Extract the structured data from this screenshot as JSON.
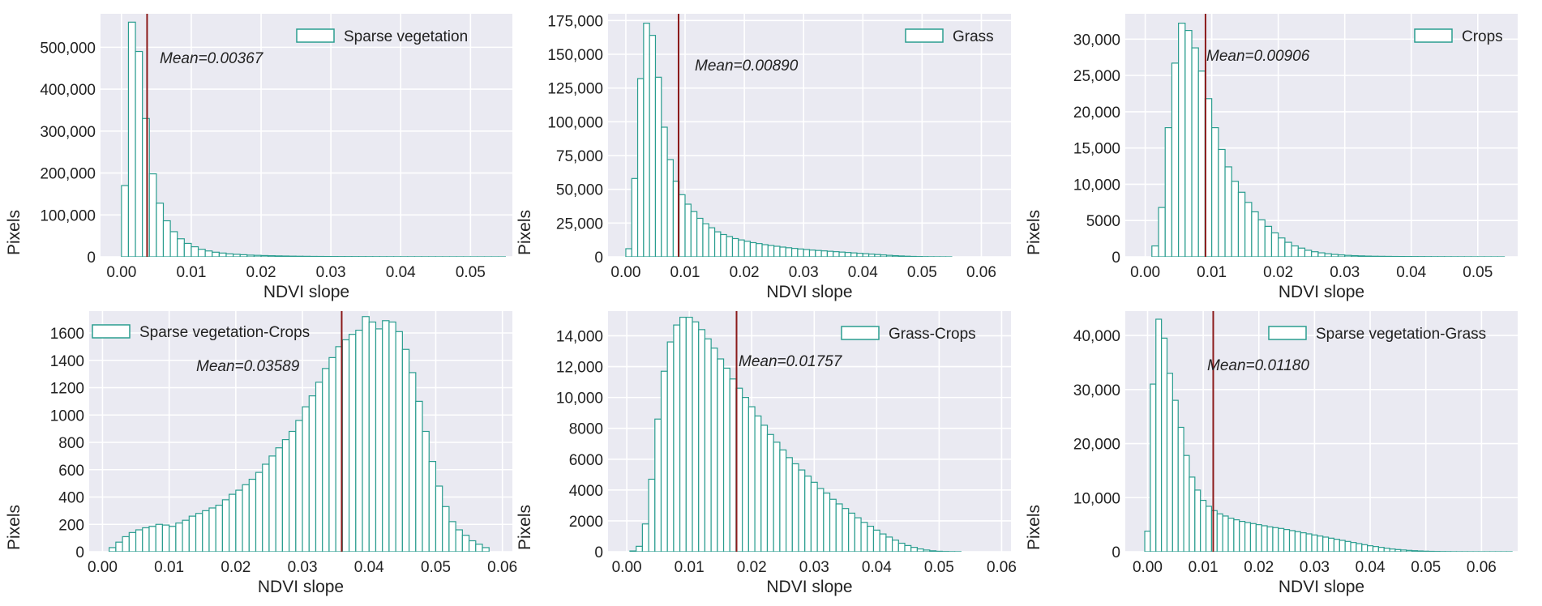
{
  "colors": {
    "background": "#eaeaf2",
    "grid": "#ffffff",
    "bar_edge": "#2a9d8f",
    "bar_fill": "#ffffff",
    "mean_line": "#8b1a1a"
  },
  "chart_data": [
    {
      "type": "histogram",
      "legend": "Sparse vegetation",
      "legend_pos": "top-right",
      "mean": 0.00367,
      "mean_label": "Mean=0.00367",
      "xlabel": "NDVI slope",
      "ylabel": "Pixels",
      "xlim": [
        -0.003,
        0.056
      ],
      "ylim": [
        0,
        580000
      ],
      "xticks": [
        0,
        0.01,
        0.02,
        0.03,
        0.04,
        0.05
      ],
      "xtick_labels": [
        "0.00",
        "0.01",
        "0.02",
        "0.03",
        "0.04",
        "0.05"
      ],
      "yticks": [
        0,
        100000,
        200000,
        300000,
        400000,
        500000
      ],
      "ytick_labels": [
        "0",
        "100,000",
        "200,000",
        "300,000",
        "400,000",
        "500,000"
      ],
      "bin_start": 0.0,
      "bin_width": 0.001,
      "counts": [
        170000,
        560000,
        490000,
        330000,
        198000,
        128000,
        86000,
        60000,
        43000,
        32000,
        24000,
        18000,
        14000,
        11000,
        9000,
        7000,
        6000,
        5000,
        4000,
        3500,
        3000,
        2600,
        2200,
        1900,
        1600,
        1400,
        1200,
        1000,
        900,
        800,
        700,
        600,
        550,
        500,
        450,
        400,
        350,
        300,
        280,
        260,
        240,
        220,
        200,
        180,
        160,
        140,
        120,
        100,
        80,
        60,
        50,
        40,
        30,
        20,
        10
      ]
    },
    {
      "type": "histogram",
      "legend": "Grass",
      "legend_pos": "top-right",
      "mean": 0.0089,
      "mean_label": "Mean=0.00890",
      "xlabel": "NDVI slope",
      "ylabel": "Pixels",
      "xlim": [
        -0.003,
        0.065
      ],
      "ylim": [
        0,
        180000
      ],
      "xticks": [
        0,
        0.01,
        0.02,
        0.03,
        0.04,
        0.05,
        0.06
      ],
      "xtick_labels": [
        "0.00",
        "0.01",
        "0.02",
        "0.03",
        "0.04",
        "0.05",
        "0.06"
      ],
      "yticks": [
        0,
        25000,
        50000,
        75000,
        100000,
        125000,
        150000,
        175000
      ],
      "ytick_labels": [
        "0",
        "25,000",
        "50,000",
        "75,000",
        "100,000",
        "125,000",
        "150,000",
        "175,000"
      ],
      "bin_start": 0.0,
      "bin_width": 0.001,
      "counts": [
        6000,
        58000,
        132000,
        173000,
        164000,
        133000,
        96000,
        72000,
        56000,
        46000,
        39000,
        33500,
        28500,
        24500,
        21500,
        18500,
        16500,
        15000,
        13500,
        12500,
        11500,
        10500,
        9800,
        9000,
        8400,
        7800,
        7200,
        6700,
        6200,
        5800,
        5400,
        5000,
        4700,
        4400,
        4100,
        3800,
        3500,
        3200,
        2900,
        2600,
        2300,
        2000,
        1700,
        1400,
        1100,
        850,
        650,
        450,
        300,
        200,
        120,
        70,
        40,
        20,
        10
      ]
    },
    {
      "type": "histogram",
      "legend": "Crops",
      "legend_pos": "top-right",
      "mean": 0.00906,
      "mean_label": "Mean=0.00906",
      "xlabel": "NDVI slope",
      "ylabel": "Pixels",
      "xlim": [
        -0.003,
        0.056
      ],
      "ylim": [
        0,
        33500
      ],
      "xticks": [
        0,
        0.01,
        0.02,
        0.03,
        0.04,
        0.05
      ],
      "xtick_labels": [
        "0.00",
        "0.01",
        "0.02",
        "0.03",
        "0.04",
        "0.05"
      ],
      "yticks": [
        0,
        5000,
        10000,
        15000,
        20000,
        25000,
        30000
      ],
      "ytick_labels": [
        "0",
        "5000",
        "10,000",
        "15,000",
        "20,000",
        "25,000",
        "30,000"
      ],
      "bin_start": 0.001,
      "bin_width": 0.001,
      "counts": [
        1500,
        6800,
        17800,
        26700,
        32200,
        31200,
        28800,
        25600,
        21800,
        17800,
        14800,
        12400,
        10400,
        8900,
        7500,
        6200,
        5100,
        4200,
        3300,
        2600,
        2000,
        1500,
        1200,
        900,
        700,
        550,
        420,
        330,
        260,
        200,
        160,
        130,
        100,
        80,
        70,
        60,
        50,
        45,
        40,
        35,
        30,
        25,
        20,
        18,
        15,
        12,
        10,
        8,
        6,
        5,
        4,
        3,
        2
      ]
    },
    {
      "type": "histogram",
      "legend": "Sparse vegetation-Crops",
      "legend_pos": "top-left",
      "mean": 0.03589,
      "mean_label": "Mean=0.03589",
      "xlabel": "NDVI slope",
      "ylabel": "Pixels",
      "xlim": [
        -0.002,
        0.0615
      ],
      "ylim": [
        0,
        1760
      ],
      "xticks": [
        0,
        0.01,
        0.02,
        0.03,
        0.04,
        0.05,
        0.06
      ],
      "xtick_labels": [
        "0.00",
        "0.01",
        "0.02",
        "0.03",
        "0.04",
        "0.05",
        "0.06"
      ],
      "yticks": [
        0,
        200,
        400,
        600,
        800,
        1000,
        1200,
        1400,
        1600
      ],
      "ytick_labels": [
        "0",
        "200",
        "400",
        "600",
        "800",
        "1000",
        "1200",
        "1400",
        "1600"
      ],
      "bin_start": 0.001,
      "bin_width": 0.001,
      "counts": [
        30,
        70,
        110,
        140,
        160,
        175,
        185,
        200,
        195,
        185,
        210,
        230,
        260,
        280,
        300,
        320,
        340,
        380,
        420,
        450,
        490,
        530,
        580,
        640,
        700,
        760,
        820,
        880,
        960,
        1060,
        1140,
        1240,
        1340,
        1420,
        1500,
        1550,
        1590,
        1620,
        1720,
        1680,
        1630,
        1690,
        1680,
        1610,
        1480,
        1310,
        1100,
        880,
        660,
        480,
        330,
        220,
        160,
        120,
        80,
        55,
        30
      ]
    },
    {
      "type": "histogram",
      "legend": "Grass-Crops",
      "legend_pos": "top-right",
      "mean": 0.01757,
      "mean_label": "Mean=0.01757",
      "xlabel": "NDVI slope",
      "ylabel": "Pixels",
      "xlim": [
        -0.003,
        0.0615
      ],
      "ylim": [
        0,
        15600
      ],
      "xticks": [
        0,
        0.01,
        0.02,
        0.03,
        0.04,
        0.05,
        0.06
      ],
      "xtick_labels": [
        "0.00",
        "0.01",
        "0.02",
        "0.03",
        "0.04",
        "0.05",
        "0.06"
      ],
      "yticks": [
        0,
        2000,
        4000,
        6000,
        8000,
        10000,
        12000,
        14000
      ],
      "ytick_labels": [
        "0",
        "2000",
        "4000",
        "6000",
        "8000",
        "10,000",
        "12,000",
        "14,000"
      ],
      "bin_start": 0.0005,
      "bin_width": 0.001,
      "counts": [
        50,
        350,
        1800,
        4700,
        8600,
        11700,
        13600,
        14700,
        15200,
        15200,
        14900,
        14400,
        13800,
        13200,
        12500,
        11900,
        11200,
        10600,
        10000,
        9400,
        8800,
        8200,
        7600,
        7100,
        6600,
        6100,
        5700,
        5300,
        4900,
        4500,
        4100,
        3800,
        3400,
        3100,
        2800,
        2500,
        2200,
        1900,
        1650,
        1400,
        1150,
        950,
        750,
        550,
        400,
        280,
        180,
        110,
        60,
        30,
        15,
        8,
        4
      ]
    },
    {
      "type": "histogram",
      "legend": "Sparse vegetation-Grass",
      "legend_pos": "top-right",
      "mean": 0.0118,
      "mean_label": "Mean=0.01180",
      "xlabel": "NDVI slope",
      "ylabel": "Pixels",
      "xlim": [
        -0.004,
        0.0665
      ],
      "ylim": [
        0,
        44500
      ],
      "xticks": [
        0,
        0.01,
        0.02,
        0.03,
        0.04,
        0.05,
        0.06
      ],
      "xtick_labels": [
        "0.00",
        "0.01",
        "0.02",
        "0.03",
        "0.04",
        "0.05",
        "0.06"
      ],
      "yticks": [
        0,
        10000,
        20000,
        30000,
        40000
      ],
      "ytick_labels": [
        "0",
        "10,000",
        "20,000",
        "30,000",
        "40,000"
      ],
      "bin_start": -0.0005,
      "bin_width": 0.001,
      "counts": [
        3800,
        31000,
        43000,
        39500,
        33000,
        28000,
        23000,
        17800,
        13800,
        11400,
        9500,
        8400,
        7600,
        7000,
        6600,
        6200,
        5900,
        5600,
        5400,
        5200,
        5000,
        4800,
        4600,
        4450,
        4300,
        4100,
        3900,
        3700,
        3500,
        3300,
        3100,
        2900,
        2700,
        2500,
        2300,
        2100,
        1900,
        1700,
        1500,
        1300,
        1100,
        950,
        800,
        650,
        500,
        400,
        320,
        250,
        190,
        140,
        100,
        70,
        50,
        35,
        25,
        15,
        10,
        6,
        4,
        2,
        1,
        1,
        1,
        1,
        1,
        1
      ]
    }
  ]
}
